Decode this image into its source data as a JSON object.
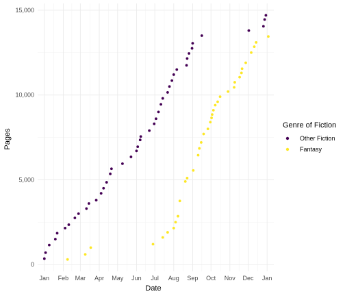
{
  "chart_data": {
    "type": "scatter",
    "xlabel": "Date",
    "ylabel": "Pages",
    "x_ticks": [
      "Jan",
      "Feb",
      "Mar",
      "Apr",
      "May",
      "Jun",
      "Jul",
      "Aug",
      "Sep",
      "Oct",
      "Nov",
      "Dec",
      "Jan"
    ],
    "x_tick_dates": [
      "2021-01-01",
      "2021-02-01",
      "2021-03-01",
      "2021-04-01",
      "2021-05-01",
      "2021-06-01",
      "2021-07-01",
      "2021-08-01",
      "2021-09-01",
      "2021-10-01",
      "2021-11-01",
      "2021-12-01",
      "2022-01-01"
    ],
    "y_ticks": [
      "0",
      "5,000",
      "10,000",
      "15,000"
    ],
    "y_tick_values": [
      0,
      5000,
      10000,
      15000
    ],
    "xlim": [
      "2020-12-21",
      "2022-01-12"
    ],
    "ylim": [
      -400,
      15400
    ],
    "grid": true,
    "legend": {
      "title": "Genre of Fiction",
      "placement": "right"
    },
    "series": [
      {
        "name": "Other Fiction",
        "color": "#440154",
        "points": [
          {
            "x": "2021-01-01",
            "y": 350
          },
          {
            "x": "2021-01-03",
            "y": 700
          },
          {
            "x": "2021-01-09",
            "y": 1150
          },
          {
            "x": "2021-01-19",
            "y": 1500
          },
          {
            "x": "2021-01-22",
            "y": 1850
          },
          {
            "x": "2021-02-04",
            "y": 2150
          },
          {
            "x": "2021-02-10",
            "y": 2350
          },
          {
            "x": "2021-02-20",
            "y": 2750
          },
          {
            "x": "2021-02-26",
            "y": 3000
          },
          {
            "x": "2021-03-11",
            "y": 3300
          },
          {
            "x": "2021-03-15",
            "y": 3600
          },
          {
            "x": "2021-03-27",
            "y": 3800
          },
          {
            "x": "2021-04-04",
            "y": 4200
          },
          {
            "x": "2021-04-08",
            "y": 4500
          },
          {
            "x": "2021-04-13",
            "y": 4850
          },
          {
            "x": "2021-04-19",
            "y": 5350
          },
          {
            "x": "2021-04-21",
            "y": 5650
          },
          {
            "x": "2021-05-09",
            "y": 5950
          },
          {
            "x": "2021-05-23",
            "y": 6350
          },
          {
            "x": "2021-06-01",
            "y": 6700
          },
          {
            "x": "2021-06-03",
            "y": 6950
          },
          {
            "x": "2021-06-07",
            "y": 7350
          },
          {
            "x": "2021-06-08",
            "y": 7550
          },
          {
            "x": "2021-06-22",
            "y": 7900
          },
          {
            "x": "2021-06-30",
            "y": 8300
          },
          {
            "x": "2021-07-03",
            "y": 8600
          },
          {
            "x": "2021-07-07",
            "y": 9000
          },
          {
            "x": "2021-07-11",
            "y": 9450
          },
          {
            "x": "2021-07-14",
            "y": 9800
          },
          {
            "x": "2021-07-22",
            "y": 10150
          },
          {
            "x": "2021-07-25",
            "y": 10500
          },
          {
            "x": "2021-07-29",
            "y": 10850
          },
          {
            "x": "2021-08-01",
            "y": 11200
          },
          {
            "x": "2021-08-06",
            "y": 11500
          },
          {
            "x": "2021-08-22",
            "y": 11750
          },
          {
            "x": "2021-08-23",
            "y": 12150
          },
          {
            "x": "2021-08-26",
            "y": 12450
          },
          {
            "x": "2021-08-31",
            "y": 12750
          },
          {
            "x": "2021-09-01",
            "y": 13050
          },
          {
            "x": "2021-09-16",
            "y": 13500
          },
          {
            "x": "2021-12-02",
            "y": 13800
          },
          {
            "x": "2021-12-26",
            "y": 14050
          },
          {
            "x": "2021-12-28",
            "y": 14450
          },
          {
            "x": "2021-12-30",
            "y": 14700
          }
        ]
      },
      {
        "name": "Fantasy",
        "color": "#fde725",
        "points": [
          {
            "x": "2021-02-08",
            "y": 300
          },
          {
            "x": "2021-03-09",
            "y": 600
          },
          {
            "x": "2021-03-18",
            "y": 1000
          },
          {
            "x": "2021-06-28",
            "y": 1200
          },
          {
            "x": "2021-07-14",
            "y": 1600
          },
          {
            "x": "2021-07-22",
            "y": 1900
          },
          {
            "x": "2021-08-01",
            "y": 2150
          },
          {
            "x": "2021-08-04",
            "y": 2500
          },
          {
            "x": "2021-08-08",
            "y": 2850
          },
          {
            "x": "2021-08-11",
            "y": 3750
          },
          {
            "x": "2021-08-20",
            "y": 4900
          },
          {
            "x": "2021-08-23",
            "y": 5100
          },
          {
            "x": "2021-09-02",
            "y": 5550
          },
          {
            "x": "2021-09-10",
            "y": 6450
          },
          {
            "x": "2021-09-12",
            "y": 6850
          },
          {
            "x": "2021-09-15",
            "y": 7200
          },
          {
            "x": "2021-09-19",
            "y": 7700
          },
          {
            "x": "2021-09-26",
            "y": 8000
          },
          {
            "x": "2021-09-30",
            "y": 8400
          },
          {
            "x": "2021-10-02",
            "y": 8650
          },
          {
            "x": "2021-10-03",
            "y": 8850
          },
          {
            "x": "2021-10-05",
            "y": 9100
          },
          {
            "x": "2021-10-08",
            "y": 9400
          },
          {
            "x": "2021-10-12",
            "y": 9600
          },
          {
            "x": "2021-10-16",
            "y": 9900
          },
          {
            "x": "2021-10-29",
            "y": 10200
          },
          {
            "x": "2021-11-08",
            "y": 10450
          },
          {
            "x": "2021-11-09",
            "y": 10750
          },
          {
            "x": "2021-11-17",
            "y": 11050
          },
          {
            "x": "2021-11-20",
            "y": 11300
          },
          {
            "x": "2021-11-21",
            "y": 11550
          },
          {
            "x": "2021-11-27",
            "y": 11900
          },
          {
            "x": "2021-12-06",
            "y": 12500
          },
          {
            "x": "2021-12-11",
            "y": 12850
          },
          {
            "x": "2021-12-14",
            "y": 13100
          },
          {
            "x": "2022-01-03",
            "y": 13450
          }
        ]
      }
    ]
  }
}
